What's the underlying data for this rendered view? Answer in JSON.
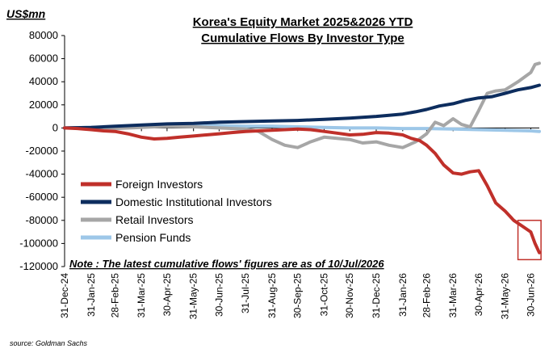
{
  "chart_data": {
    "type": "line",
    "title_line1": "Korea's Equity  Market 2025&2026  YTD",
    "title_line2": "Cumulative Flows By Investor Type",
    "unit_label": "US$mn",
    "note": "Note : The latest cumulative  flows' figures are as of 10/Jul/2026",
    "source": "source: Goldman Sachs",
    "ylim": [
      -120000,
      80000
    ],
    "yticks": [
      80000,
      60000,
      40000,
      20000,
      0,
      -20000,
      -40000,
      -60000,
      -80000,
      -100000,
      -120000
    ],
    "ytick_labels": [
      "80000",
      "60000",
      "40000",
      "20000",
      "0",
      "-20000",
      "-40000",
      "-60000",
      "-80000",
      "-100000",
      "-120000"
    ],
    "xlim": [
      "2024-12-31",
      "2026-07-10"
    ],
    "xticks": [
      "2024-12-31",
      "2025-01-31",
      "2025-02-28",
      "2025-03-31",
      "2025-04-30",
      "2025-05-31",
      "2025-06-30",
      "2025-07-31",
      "2025-08-31",
      "2025-09-30",
      "2025-10-31",
      "2025-11-30",
      "2025-12-31",
      "2026-01-31",
      "2026-02-28",
      "2026-03-31",
      "2026-04-30",
      "2026-05-31",
      "2026-06-30"
    ],
    "xtick_labels": [
      "31-Dec-24",
      "31-Jan-25",
      "28-Feb-25",
      "31-Mar-25",
      "30-Apr-25",
      "31-May-25",
      "30-Jun-25",
      "31-Jul-25",
      "31-Aug-25",
      "30-Sep-25",
      "31-Oct-25",
      "30-Nov-25",
      "31-Dec-25",
      "31-Jan-26",
      "28-Feb-26",
      "31-Mar-26",
      "30-Apr-26",
      "31-May-26",
      "30-Jun-26"
    ],
    "legend_position": "lower-left",
    "grid": false,
    "series": [
      {
        "name": "Foreign Investors",
        "color": "#c0302a",
        "x": [
          "2024-12-31",
          "2025-01-15",
          "2025-01-31",
          "2025-02-15",
          "2025-02-28",
          "2025-03-15",
          "2025-03-31",
          "2025-04-15",
          "2025-04-30",
          "2025-05-15",
          "2025-05-31",
          "2025-06-15",
          "2025-06-30",
          "2025-07-15",
          "2025-07-31",
          "2025-08-15",
          "2025-08-31",
          "2025-09-15",
          "2025-09-30",
          "2025-10-15",
          "2025-10-31",
          "2025-11-15",
          "2025-11-30",
          "2025-12-15",
          "2025-12-31",
          "2026-01-15",
          "2026-01-31",
          "2026-02-10",
          "2026-02-20",
          "2026-02-28",
          "2026-03-10",
          "2026-03-20",
          "2026-03-31",
          "2026-04-10",
          "2026-04-20",
          "2026-04-30",
          "2026-05-10",
          "2026-05-20",
          "2026-05-31",
          "2026-06-10",
          "2026-06-20",
          "2026-06-30",
          "2026-07-05",
          "2026-07-10"
        ],
        "y": [
          0,
          -500,
          -1500,
          -2500,
          -3000,
          -5000,
          -8000,
          -9500,
          -9000,
          -8000,
          -7000,
          -6000,
          -5000,
          -4000,
          -3000,
          -2500,
          -2000,
          -1500,
          -1000,
          -1500,
          -3000,
          -4500,
          -6000,
          -5500,
          -4000,
          -4500,
          -6000,
          -9000,
          -11000,
          -15000,
          -22000,
          -32000,
          -39000,
          -40000,
          -38000,
          -37000,
          -50000,
          -65000,
          -72000,
          -80000,
          -85000,
          -90000,
          -100000,
          -108000
        ]
      },
      {
        "name": "Domestic Institutional Investors",
        "color": "#0d2d5e",
        "x": [
          "2024-12-31",
          "2025-01-31",
          "2025-02-28",
          "2025-03-31",
          "2025-04-30",
          "2025-05-31",
          "2025-06-30",
          "2025-07-31",
          "2025-08-31",
          "2025-09-30",
          "2025-10-31",
          "2025-11-30",
          "2025-12-31",
          "2026-01-15",
          "2026-01-31",
          "2026-02-15",
          "2026-02-28",
          "2026-03-15",
          "2026-03-31",
          "2026-04-15",
          "2026-04-30",
          "2026-05-15",
          "2026-05-31",
          "2026-06-15",
          "2026-06-30",
          "2026-07-10"
        ],
        "y": [
          0,
          500,
          1500,
          2500,
          3500,
          4000,
          5000,
          5500,
          6000,
          6500,
          7500,
          8500,
          10000,
          11000,
          12000,
          14000,
          16000,
          19000,
          21000,
          24000,
          26000,
          27000,
          30000,
          33000,
          35000,
          37000
        ]
      },
      {
        "name": "Retail Investors",
        "color": "#a6a6a6",
        "x": [
          "2024-12-31",
          "2025-01-31",
          "2025-02-28",
          "2025-03-31",
          "2025-04-30",
          "2025-05-31",
          "2025-06-30",
          "2025-07-31",
          "2025-08-15",
          "2025-08-31",
          "2025-09-15",
          "2025-09-30",
          "2025-10-15",
          "2025-10-31",
          "2025-11-15",
          "2025-11-30",
          "2025-12-15",
          "2025-12-31",
          "2026-01-15",
          "2026-01-31",
          "2026-02-15",
          "2026-02-28",
          "2026-03-10",
          "2026-03-20",
          "2026-03-31",
          "2026-04-10",
          "2026-04-20",
          "2026-04-30",
          "2026-05-10",
          "2026-05-20",
          "2026-05-31",
          "2026-06-15",
          "2026-06-30",
          "2026-07-05",
          "2026-07-10"
        ],
        "y": [
          0,
          0,
          -500,
          500,
          1500,
          1000,
          0,
          -1000,
          -3000,
          -10000,
          -15000,
          -17000,
          -12000,
          -8000,
          -9000,
          -10000,
          -13000,
          -12000,
          -15000,
          -17000,
          -12000,
          -5000,
          5000,
          2000,
          8000,
          3000,
          1000,
          15000,
          30000,
          32000,
          33000,
          40000,
          48000,
          55000,
          56000
        ]
      },
      {
        "name": "Pension Funds",
        "color": "#9dc7e8",
        "x": [
          "2024-12-31",
          "2025-01-31",
          "2025-02-28",
          "2025-03-31",
          "2025-04-30",
          "2025-05-31",
          "2025-06-30",
          "2025-07-31",
          "2025-08-31",
          "2025-09-30",
          "2025-10-31",
          "2025-11-30",
          "2025-12-31",
          "2026-01-31",
          "2026-02-28",
          "2026-03-31",
          "2026-04-30",
          "2026-05-31",
          "2026-06-30",
          "2026-07-10"
        ],
        "y": [
          0,
          500,
          1000,
          1500,
          1500,
          2000,
          2000,
          1500,
          1500,
          1000,
          500,
          0,
          0,
          -500,
          -500,
          -1000,
          -1500,
          -2000,
          -2500,
          -3000
        ]
      }
    ],
    "highlight_box": {
      "x_from": "2026-06-15",
      "x_to": "2026-07-12",
      "y_from": -80000,
      "y_to": -114000,
      "color": "#c0302a"
    }
  }
}
